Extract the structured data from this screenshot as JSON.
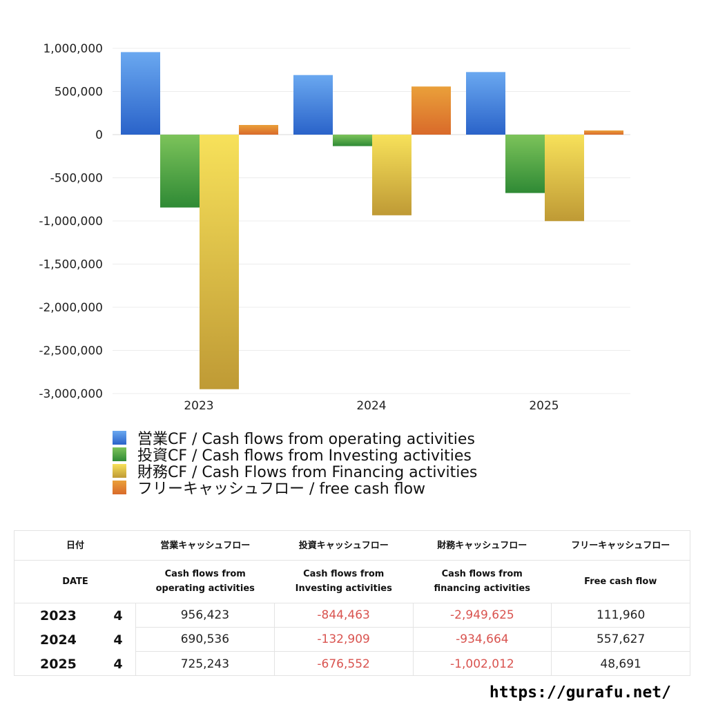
{
  "chart_data": {
    "type": "bar",
    "categories": [
      "2023",
      "2024",
      "2025"
    ],
    "series": [
      {
        "name": "営業CF / Cash flows from operating activities",
        "values": [
          956423,
          690536,
          725243
        ],
        "color_top": "#6aa8f0",
        "color_bottom": "#2a63c9"
      },
      {
        "name": "投資CF / Cash flows from Investing activities",
        "values": [
          -844463,
          -132909,
          -676552
        ],
        "color_top": "#7cc35a",
        "color_bottom": "#2f8a35"
      },
      {
        "name": "財務CF / Cash Flows from Financing activities",
        "values": [
          -2949625,
          -934664,
          -1002012
        ],
        "color_top": "#f7e15a",
        "color_bottom": "#bf9a35"
      },
      {
        "name": "フリーキャッシュフロー / free cash flow",
        "values": [
          111960,
          557627,
          48691
        ],
        "color_top": "#eaa03a",
        "color_bottom": "#d96a2a"
      }
    ],
    "ylim": [
      -3000000,
      1000000
    ],
    "yticks": [
      1000000,
      500000,
      0,
      -500000,
      -1000000,
      -1500000,
      -2000000,
      -2500000,
      -3000000
    ],
    "ytick_labels": [
      "1,000,000",
      "500,000",
      "0",
      "-500,000",
      "-1,000,000",
      "-1,500,000",
      "-2,000,000",
      "-2,500,000",
      "-3,000,000"
    ],
    "grid": true,
    "legend_placement": "bottom"
  },
  "legend": [
    {
      "label": "営業CF / Cash flows from operating activities",
      "color": "#3d7fe0"
    },
    {
      "label": "投資CF / Cash flows from Investing activities",
      "color": "#4ea646"
    },
    {
      "label": "財務CF / Cash Flows from Financing activities",
      "color": "#e6cf4a"
    },
    {
      "label": "フリーキャッシュフロー / free cash flow",
      "color": "#e2822f"
    }
  ],
  "table": {
    "header_jp": [
      "日付",
      "営業キャッシュフロー",
      "投資キャッシュフロー",
      "財務キャッシュフロー",
      "フリーキャッシュフロー"
    ],
    "header_en": [
      "DATE",
      "Cash flows from\noperating activities",
      "Cash flows from\nInvesting activities",
      "Cash flows from\nfinancing activities",
      "Free cash flow"
    ],
    "rows": [
      {
        "year": "2023",
        "q": "4",
        "op": "956,423",
        "inv": "-844,463",
        "fin": "-2,949,625",
        "fcf": "111,960"
      },
      {
        "year": "2024",
        "q": "4",
        "op": "690,536",
        "inv": "-132,909",
        "fin": "-934,664",
        "fcf": "557,627"
      },
      {
        "year": "2025",
        "q": "4",
        "op": "725,243",
        "inv": "-676,552",
        "fin": "-1,002,012",
        "fcf": "48,691"
      }
    ]
  },
  "footer_url": "https://gurafu.net/"
}
